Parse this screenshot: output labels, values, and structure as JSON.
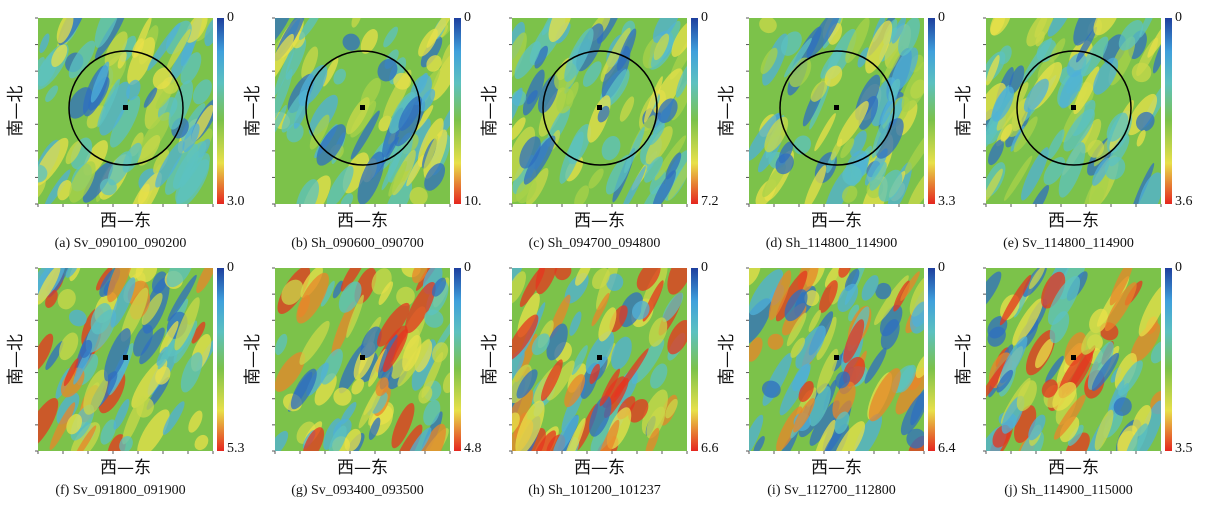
{
  "panels": [
    {
      "axis_y": "南—北",
      "axis_x": "西—东",
      "colorbar_top": "0",
      "colorbar_bottom": "3.0",
      "caption": "(a) Sv_090100_090200"
    },
    {
      "axis_y": "南—北",
      "axis_x": "西—东",
      "colorbar_top": "0",
      "colorbar_bottom": "10.",
      "caption": "(b) Sh_090600_090700"
    },
    {
      "axis_y": "南—北",
      "axis_x": "西—东",
      "colorbar_top": "0",
      "colorbar_bottom": "7.2",
      "caption": "(c) Sh_094700_094800"
    },
    {
      "axis_y": "南—北",
      "axis_x": "西—东",
      "colorbar_top": "0",
      "colorbar_bottom": "3.3",
      "caption": "(d) Sh_114800_114900"
    },
    {
      "axis_y": "南—北",
      "axis_x": "西—东",
      "colorbar_top": "0",
      "colorbar_bottom": "3.6",
      "caption": "(e) Sv_114800_114900"
    },
    {
      "axis_y": "南—北",
      "axis_x": "西—东",
      "colorbar_top": "0",
      "colorbar_bottom": "5.3",
      "caption": "(f) Sv_091800_091900"
    },
    {
      "axis_y": "南—北",
      "axis_x": "西—东",
      "colorbar_top": "0",
      "colorbar_bottom": "4.8",
      "caption": "(g) Sv_093400_093500"
    },
    {
      "axis_y": "南—北",
      "axis_x": "西—东",
      "colorbar_top": "0",
      "colorbar_bottom": "6.6",
      "caption": "(h) Sh_101200_101237"
    },
    {
      "axis_y": "南—北",
      "axis_x": "西—东",
      "colorbar_top": "0",
      "colorbar_bottom": "6.4",
      "caption": "(i) Sv_112700_112800"
    },
    {
      "axis_y": "南—北",
      "axis_x": "西—东",
      "colorbar_top": "0",
      "colorbar_bottom": "3.5",
      "caption": "(j) Sh_114900_115000"
    }
  ]
}
